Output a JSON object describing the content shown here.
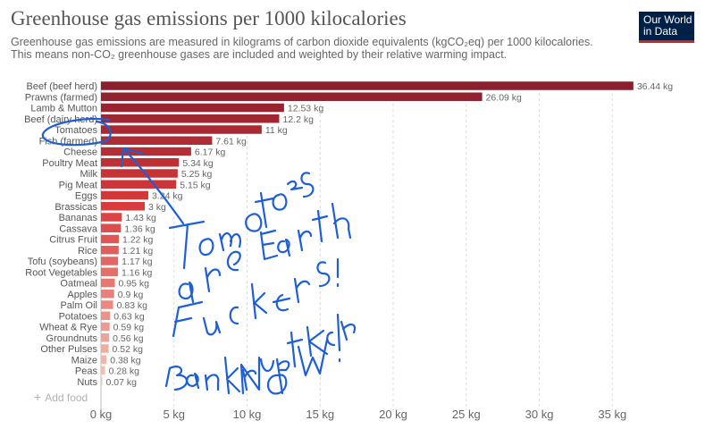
{
  "header": {
    "title": "Greenhouse gas emissions per 1000 kilocalories",
    "subtitle_line1": "Greenhouse gas emissions are measured in kilograms of carbon dioxide equivalents (kgCO₂eq) per 1000 kilocalories.",
    "subtitle_line2": "This means non-CO₂ greenhouse gases are included and weighted by their relative warming impact."
  },
  "logo": {
    "line1": "Our World",
    "line2": "in Data"
  },
  "add_food": {
    "label": "Add food"
  },
  "colors": {
    "dark": "#8a1f2e",
    "mid": "#d93a3a",
    "light": "#f6c6b8",
    "grid": "#dddddd",
    "ink": "#1e5fd6"
  },
  "chart_data": {
    "type": "bar",
    "orientation": "horizontal",
    "title": "Greenhouse gas emissions per 1000 kilocalories",
    "unit": "kg",
    "categories": [
      "Beef (beef herd)",
      "Prawns (farmed)",
      "Lamb & Mutton",
      "Beef (dairy herd)",
      "Tomatoes",
      "Fish (farmed)",
      "Cheese",
      "Poultry Meat",
      "Milk",
      "Pig Meat",
      "Eggs",
      "Brassicas",
      "Bananas",
      "Cassava",
      "Citrus Fruit",
      "Rice",
      "Tofu (soybeans)",
      "Root Vegetables",
      "Oatmeal",
      "Apples",
      "Palm Oil",
      "Potatoes",
      "Wheat & Rye",
      "Groundnuts",
      "Other Pulses",
      "Maize",
      "Peas",
      "Nuts"
    ],
    "values": [
      36.44,
      26.09,
      12.53,
      12.2,
      11,
      7.61,
      6.17,
      5.34,
      5.25,
      5.15,
      3.24,
      3,
      1.43,
      1.36,
      1.22,
      1.21,
      1.17,
      1.16,
      0.95,
      0.9,
      0.83,
      0.63,
      0.59,
      0.56,
      0.52,
      0.38,
      0.28,
      0.07
    ],
    "value_labels": [
      "36.44 kg",
      "26.09 kg",
      "12.53 kg",
      "12.2 kg",
      "11 kg",
      "7.61 kg",
      "6.17 kg",
      "5.34 kg",
      "5.25 kg",
      "5.15 kg",
      "3.24 kg",
      "3 kg",
      "1.43 kg",
      "1.36 kg",
      "1.22 kg",
      "1.21 kg",
      "1.17 kg",
      "1.16 kg",
      "0.95 kg",
      "0.9 kg",
      "0.83 kg",
      "0.63 kg",
      "0.59 kg",
      "0.56 kg",
      "0.52 kg",
      "0.38 kg",
      "0.28 kg",
      "0.07 kg"
    ],
    "xlim": [
      0,
      37
    ],
    "xticks": [
      0,
      5,
      10,
      15,
      20,
      25,
      30,
      35
    ],
    "xtick_labels": [
      "0 kg",
      "5 kg",
      "10 kg",
      "15 kg",
      "20 kg",
      "25 kg",
      "30 kg",
      "35 kg"
    ],
    "grid": true,
    "annotation": "Tomatoes are Earth Fuckers! Bankrupt Ketchup NOW!"
  }
}
